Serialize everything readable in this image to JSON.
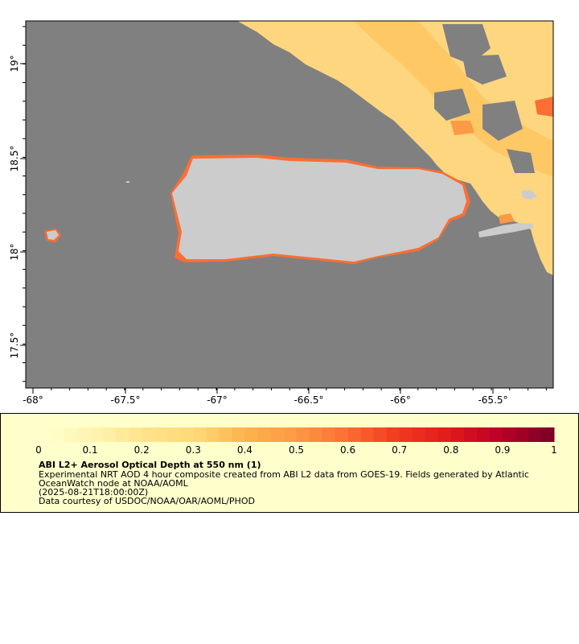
{
  "map": {
    "lon_ticks": [
      "-68°",
      "-67.5°",
      "-67°",
      "-66.5°",
      "-66°",
      "-65.5°"
    ],
    "lat_ticks": [
      "19°",
      "18.5°",
      "18°",
      "17.5°"
    ],
    "colors": {
      "no_data": "#808080",
      "land": "#cccccc",
      "ocean_frame": "#000000"
    }
  },
  "legend": {
    "colorbar_ticks": [
      "0",
      "0.1",
      "0.2",
      "0.3",
      "0.4",
      "0.5",
      "0.6",
      "0.7",
      "0.8",
      "0.9",
      "1"
    ],
    "colorbar_colors": [
      "#ffffcc",
      "#fff3b0",
      "#ffe38a",
      "#fed976",
      "#feb24c",
      "#fd9a44",
      "#fc6e33",
      "#f03b20",
      "#e31a1c",
      "#bd0026",
      "#800026"
    ],
    "title": "ABI L2+ Aerosol Optical Depth at 550 nm (1)",
    "line1": "Experimental NRT AOD 4 hour composite created from ABI L2 data from GOES-19. Fields generated by Atlantic",
    "line2": "OceanWatch node at NOAA/AOML",
    "line3": "(2025-08-21T18:00:00Z)",
    "line4": "Data courtesy of USDOC/NOAA/OAR/AOML/PHOD",
    "background": "#ffffcc"
  }
}
